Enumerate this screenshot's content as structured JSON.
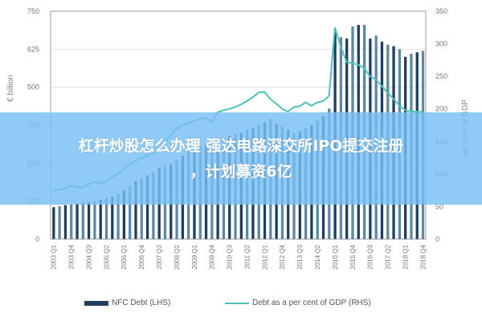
{
  "chart_data": {
    "type": "bar",
    "title": "",
    "ylabel": "€ billion",
    "y2label": "per cent of GDP",
    "ylim": [
      0,
      750
    ],
    "y2lim": [
      0,
      350
    ],
    "yticks": [
      0,
      125,
      250,
      375,
      500,
      625,
      750
    ],
    "y2ticks": [
      0,
      50,
      100,
      150,
      200,
      250,
      300,
      350
    ],
    "grid": true,
    "legend_position": "bottom",
    "categories": [
      "2003 Q1",
      "2003 Q2",
      "2003 Q3",
      "2003 Q4",
      "2004 Q1",
      "2004 Q2",
      "2004 Q3",
      "2004 Q4",
      "2005 Q1",
      "2005 Q2",
      "2005 Q3",
      "2005 Q4",
      "2006 Q1",
      "2006 Q2",
      "2006 Q3",
      "2006 Q4",
      "2007 Q1",
      "2007 Q2",
      "2007 Q3",
      "2007 Q4",
      "2008 Q1",
      "2008 Q2",
      "2008 Q3",
      "2008 Q4",
      "2009 Q1",
      "2009 Q2",
      "2009 Q3",
      "2009 Q4",
      "2010 Q1",
      "2010 Q2",
      "2010 Q3",
      "2010 Q4",
      "2011 Q1",
      "2011 Q2",
      "2011 Q3",
      "2011 Q4",
      "2012 Q1",
      "2012 Q2",
      "2012 Q3",
      "2012 Q4",
      "2013 Q1",
      "2013 Q2",
      "2013 Q3",
      "2013 Q4",
      "2014 Q1",
      "2014 Q2",
      "2014 Q3",
      "2014 Q4",
      "2015 Q1",
      "2015 Q2",
      "2015 Q3",
      "2015 Q4",
      "2016 Q1",
      "2016 Q2",
      "2016 Q3",
      "2016 Q4",
      "2017 Q1",
      "2017 Q2",
      "2017 Q3",
      "2017 Q4",
      "2018 Q1",
      "2018 Q2",
      "2018 Q3",
      "2018 Q4"
    ],
    "xtick_labels": [
      "2003 Q1",
      "2003 Q4",
      "2004 Q3",
      "2005 Q2",
      "2006 Q1",
      "2006 Q4",
      "2007 Q3",
      "2008 Q2",
      "2009 Q1",
      "2009 Q4",
      "2010 Q3",
      "2011 Q2",
      "2012 Q1",
      "2012 Q4",
      "2013 Q3",
      "2014 Q2",
      "2015 Q1",
      "2015 Q4",
      "2016 Q3",
      "2017 Q2",
      "2018 Q1",
      "2018 Q4"
    ],
    "series": [
      {
        "name": "NFC Debt (LHS)",
        "type": "bar",
        "axis": "left",
        "color": "#1f3d5c",
        "values": [
          105,
          108,
          112,
          115,
          118,
          120,
          122,
          125,
          130,
          135,
          140,
          150,
          160,
          175,
          190,
          200,
          210,
          220,
          235,
          240,
          245,
          260,
          275,
          290,
          300,
          305,
          310,
          315,
          320,
          330,
          340,
          345,
          350,
          360,
          365,
          375,
          385,
          395,
          380,
          370,
          360,
          350,
          355,
          365,
          375,
          390,
          405,
          430,
          680,
          665,
          660,
          700,
          705,
          705,
          660,
          670,
          650,
          640,
          635,
          625,
          600,
          610,
          615,
          620
        ]
      },
      {
        "name": "Debt as a per cent of GDP (RHS)",
        "type": "line",
        "axis": "right",
        "color": "#4cc3b8",
        "values": [
          75,
          76,
          78,
          82,
          80,
          79,
          84,
          88,
          86,
          88,
          95,
          100,
          108,
          115,
          120,
          125,
          128,
          132,
          140,
          150,
          160,
          170,
          175,
          178,
          182,
          185,
          186,
          180,
          195,
          198,
          200,
          203,
          207,
          212,
          218,
          225,
          226,
          215,
          208,
          200,
          196,
          203,
          204,
          210,
          205,
          210,
          212,
          220,
          325,
          295,
          272,
          270,
          268,
          262,
          250,
          245,
          235,
          225,
          215,
          205,
          198,
          196,
          196,
          195
        ]
      }
    ]
  },
  "banner": {
    "line1": "杠杆炒股怎么办理 强达电路深交所IPO提交注册",
    "line2": "，计划募资6亿",
    "color": "#78bef5"
  }
}
